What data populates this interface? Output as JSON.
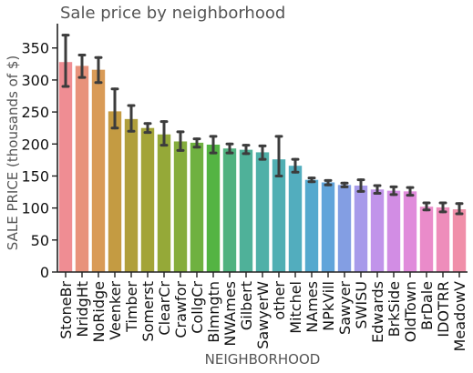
{
  "chart_data": {
    "type": "bar",
    "title": "Sale price by neighborhood",
    "xlabel": "NEIGHBORHOOD",
    "ylabel": "SALE PRICE (thousands of $)",
    "ylim": [
      0,
      388
    ],
    "yticks": [
      0,
      50,
      100,
      150,
      200,
      250,
      300,
      350
    ],
    "grid": false,
    "categories": [
      "StoneBr",
      "NridgHt",
      "NoRidge",
      "Veenker",
      "Timber",
      "Somerst",
      "ClearCr",
      "Crawfor",
      "CollgCr",
      "Blmngtn",
      "NWAmes",
      "Gilbert",
      "SawyerW",
      "other",
      "Mitchel",
      "NAmes",
      "NPkVill",
      "Sawyer",
      "SWISU",
      "Edwards",
      "BrkSide",
      "OldTown",
      "BrDale",
      "IDOTRR",
      "MeadowV"
    ],
    "values": [
      328,
      322,
      316,
      251,
      239,
      225,
      215,
      204,
      202,
      199,
      193,
      191,
      187,
      176,
      166,
      144,
      140,
      136,
      135,
      129,
      127,
      126,
      102,
      101,
      98
    ],
    "ci_low": [
      290,
      304,
      296,
      225,
      220,
      218,
      198,
      190,
      195,
      186,
      186,
      185,
      176,
      150,
      156,
      141,
      136,
      133,
      126,
      123,
      121,
      120,
      97,
      94,
      91
    ],
    "ci_high": [
      370,
      339,
      335,
      286,
      260,
      232,
      235,
      219,
      208,
      212,
      200,
      198,
      197,
      212,
      176,
      147,
      143,
      139,
      144,
      135,
      133,
      132,
      108,
      108,
      107
    ],
    "colors": [
      "#ef8d93",
      "#e8927b",
      "#d99b57",
      "#c49b42",
      "#b09f3b",
      "#a3a437",
      "#95a938",
      "#85ad3c",
      "#6fb140",
      "#54b443",
      "#4fb27f",
      "#4fb199",
      "#4fb0a8",
      "#50afb3",
      "#52adbe",
      "#55a9ce",
      "#61a4da",
      "#839ee3",
      "#a79aea",
      "#c194ea",
      "#d28de4",
      "#e08bdb",
      "#ea8bca",
      "#ee8dbb",
      "#f08fa9"
    ]
  }
}
